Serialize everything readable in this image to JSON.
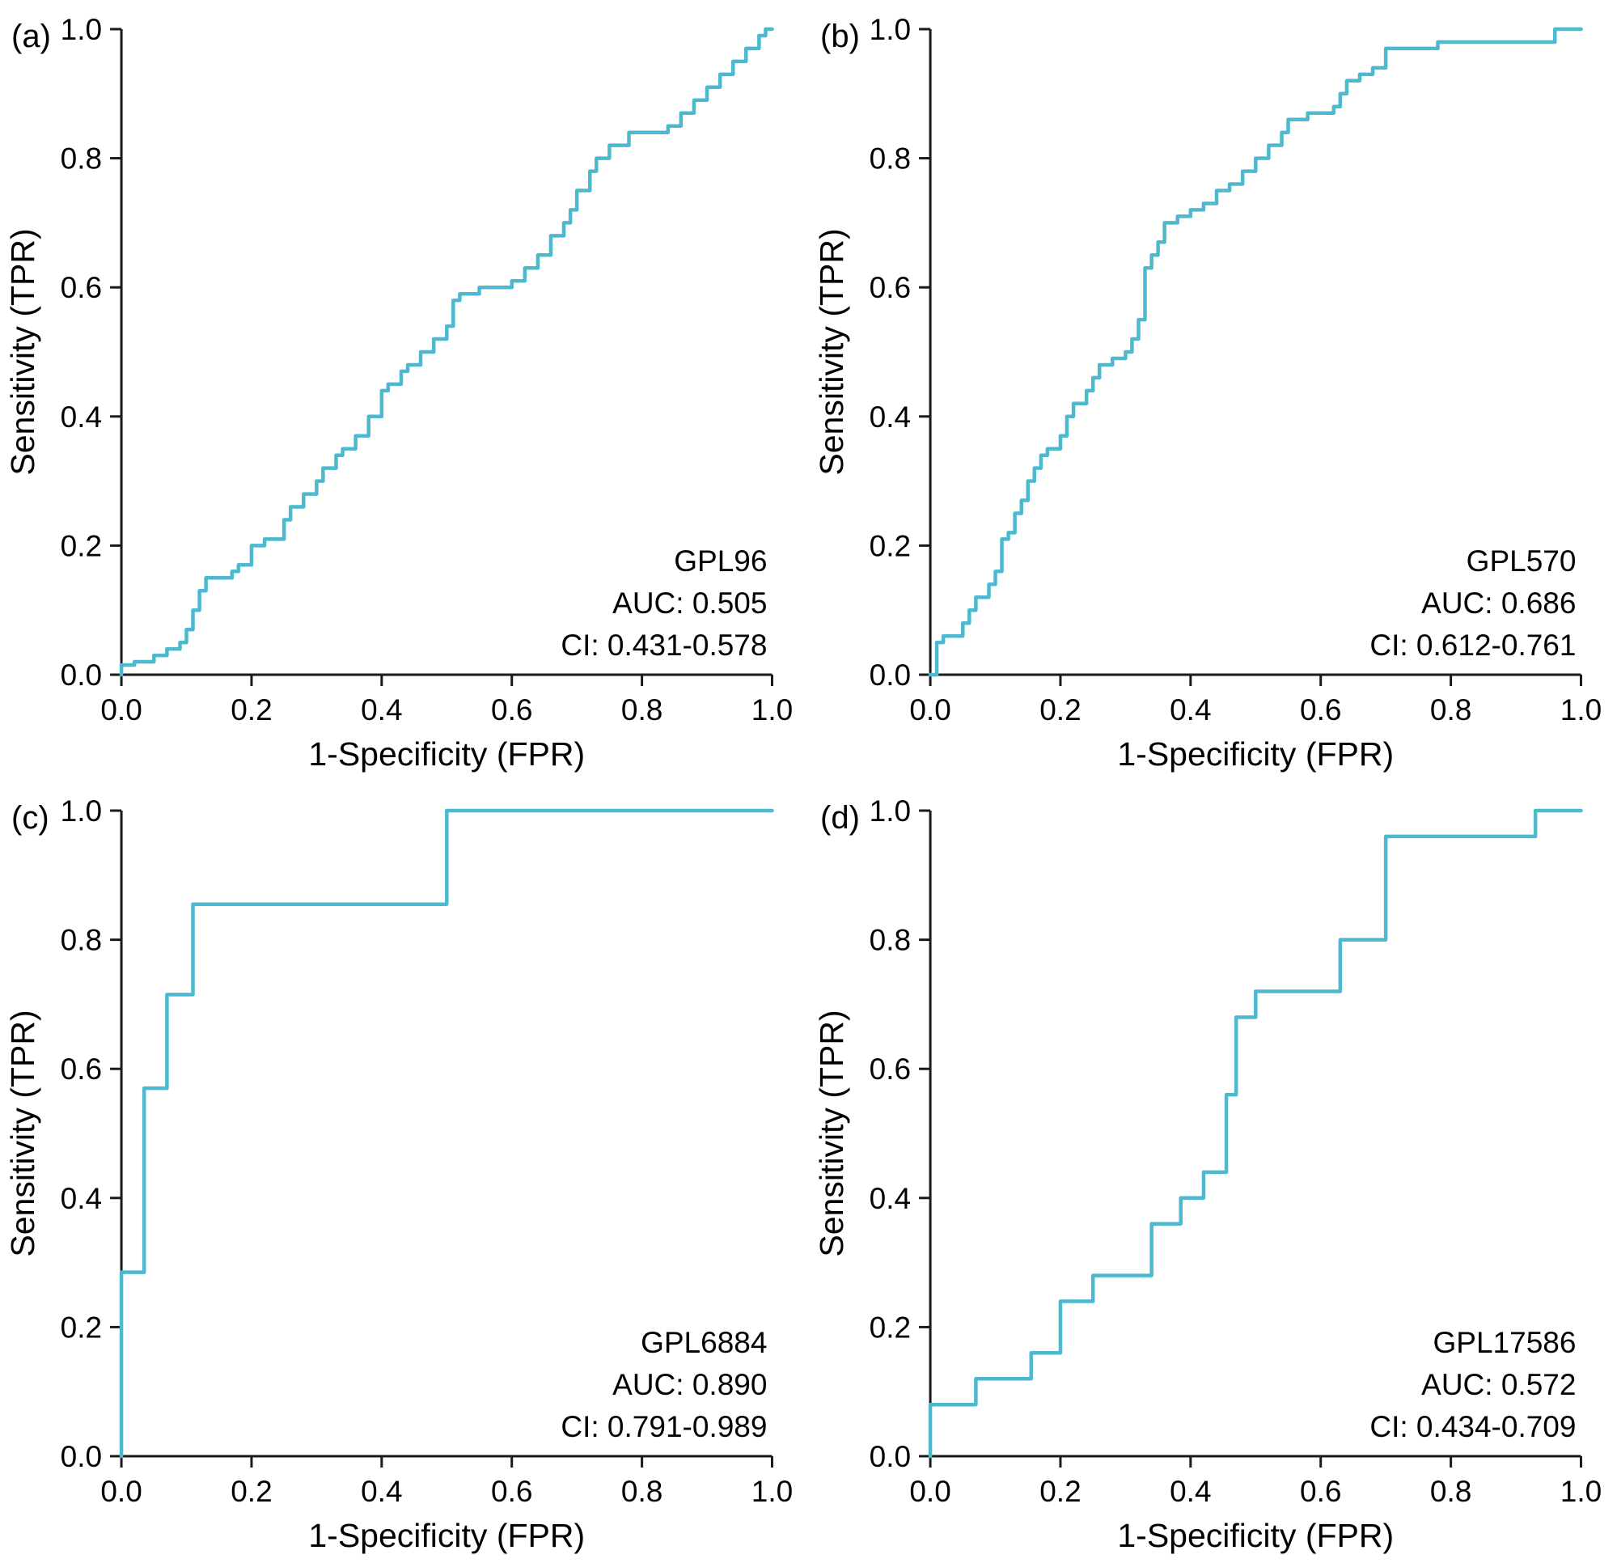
{
  "figure": {
    "curve_color": "#4cb9cf",
    "axis_color": "#1a1a1a",
    "background": "#ffffff",
    "tick_values": [
      0,
      0.2,
      0.4,
      0.6,
      0.8,
      1
    ],
    "tick_labels": [
      "0.0",
      "0.2",
      "0.4",
      "0.6",
      "0.8",
      "1.0"
    ]
  },
  "chart_data": [
    {
      "type": "line",
      "panel_label": "(a)",
      "title": "GPL96",
      "auc": 0.505,
      "ci": [
        0.431,
        0.578
      ],
      "annotation": {
        "platform": "GPL96",
        "auc": "AUC: 0.505",
        "ci": "CI: 0.431-0.578"
      },
      "xlabel": "1-Specificity (FPR)",
      "ylabel": "Sensitivity (TPR)",
      "xlim": [
        0,
        1
      ],
      "ylim": [
        0,
        1
      ],
      "points": [
        [
          0,
          0
        ],
        [
          0,
          0.015
        ],
        [
          0.02,
          0.015
        ],
        [
          0.02,
          0.02
        ],
        [
          0.05,
          0.02
        ],
        [
          0.05,
          0.03
        ],
        [
          0.07,
          0.03
        ],
        [
          0.07,
          0.04
        ],
        [
          0.09,
          0.04
        ],
        [
          0.09,
          0.05
        ],
        [
          0.1,
          0.05
        ],
        [
          0.1,
          0.07
        ],
        [
          0.11,
          0.07
        ],
        [
          0.11,
          0.1
        ],
        [
          0.12,
          0.1
        ],
        [
          0.12,
          0.13
        ],
        [
          0.13,
          0.13
        ],
        [
          0.13,
          0.15
        ],
        [
          0.17,
          0.15
        ],
        [
          0.17,
          0.16
        ],
        [
          0.18,
          0.16
        ],
        [
          0.18,
          0.17
        ],
        [
          0.2,
          0.17
        ],
        [
          0.2,
          0.2
        ],
        [
          0.22,
          0.2
        ],
        [
          0.22,
          0.21
        ],
        [
          0.25,
          0.21
        ],
        [
          0.25,
          0.24
        ],
        [
          0.26,
          0.24
        ],
        [
          0.26,
          0.26
        ],
        [
          0.28,
          0.26
        ],
        [
          0.28,
          0.28
        ],
        [
          0.3,
          0.28
        ],
        [
          0.3,
          0.3
        ],
        [
          0.31,
          0.3
        ],
        [
          0.31,
          0.32
        ],
        [
          0.33,
          0.32
        ],
        [
          0.33,
          0.34
        ],
        [
          0.34,
          0.34
        ],
        [
          0.34,
          0.35
        ],
        [
          0.36,
          0.35
        ],
        [
          0.36,
          0.37
        ],
        [
          0.38,
          0.37
        ],
        [
          0.38,
          0.4
        ],
        [
          0.4,
          0.4
        ],
        [
          0.4,
          0.44
        ],
        [
          0.41,
          0.44
        ],
        [
          0.41,
          0.45
        ],
        [
          0.43,
          0.45
        ],
        [
          0.43,
          0.47
        ],
        [
          0.44,
          0.47
        ],
        [
          0.44,
          0.48
        ],
        [
          0.46,
          0.48
        ],
        [
          0.46,
          0.5
        ],
        [
          0.48,
          0.5
        ],
        [
          0.48,
          0.52
        ],
        [
          0.5,
          0.52
        ],
        [
          0.5,
          0.54
        ],
        [
          0.51,
          0.54
        ],
        [
          0.51,
          0.58
        ],
        [
          0.52,
          0.58
        ],
        [
          0.52,
          0.59
        ],
        [
          0.55,
          0.59
        ],
        [
          0.55,
          0.6
        ],
        [
          0.6,
          0.6
        ],
        [
          0.6,
          0.61
        ],
        [
          0.62,
          0.61
        ],
        [
          0.62,
          0.63
        ],
        [
          0.64,
          0.63
        ],
        [
          0.64,
          0.65
        ],
        [
          0.66,
          0.65
        ],
        [
          0.66,
          0.68
        ],
        [
          0.68,
          0.68
        ],
        [
          0.68,
          0.7
        ],
        [
          0.69,
          0.7
        ],
        [
          0.69,
          0.72
        ],
        [
          0.7,
          0.72
        ],
        [
          0.7,
          0.75
        ],
        [
          0.72,
          0.75
        ],
        [
          0.72,
          0.78
        ],
        [
          0.73,
          0.78
        ],
        [
          0.73,
          0.8
        ],
        [
          0.75,
          0.8
        ],
        [
          0.75,
          0.82
        ],
        [
          0.78,
          0.82
        ],
        [
          0.78,
          0.84
        ],
        [
          0.84,
          0.84
        ],
        [
          0.84,
          0.85
        ],
        [
          0.86,
          0.85
        ],
        [
          0.86,
          0.87
        ],
        [
          0.88,
          0.87
        ],
        [
          0.88,
          0.89
        ],
        [
          0.9,
          0.89
        ],
        [
          0.9,
          0.91
        ],
        [
          0.92,
          0.91
        ],
        [
          0.92,
          0.93
        ],
        [
          0.94,
          0.93
        ],
        [
          0.94,
          0.95
        ],
        [
          0.96,
          0.95
        ],
        [
          0.96,
          0.97
        ],
        [
          0.98,
          0.97
        ],
        [
          0.98,
          0.99
        ],
        [
          0.99,
          0.99
        ],
        [
          0.99,
          1
        ],
        [
          1,
          1
        ]
      ]
    },
    {
      "type": "line",
      "panel_label": "(b)",
      "title": "GPL570",
      "auc": 0.686,
      "ci": [
        0.612,
        0.761
      ],
      "annotation": {
        "platform": "GPL570",
        "auc": "AUC: 0.686",
        "ci": "CI: 0.612-0.761"
      },
      "xlabel": "1-Specificity (FPR)",
      "ylabel": "Sensitivity (TPR)",
      "xlim": [
        0,
        1
      ],
      "ylim": [
        0,
        1
      ],
      "points": [
        [
          0,
          0
        ],
        [
          0.01,
          0
        ],
        [
          0.01,
          0.05
        ],
        [
          0.02,
          0.05
        ],
        [
          0.02,
          0.06
        ],
        [
          0.05,
          0.06
        ],
        [
          0.05,
          0.08
        ],
        [
          0.06,
          0.08
        ],
        [
          0.06,
          0.1
        ],
        [
          0.07,
          0.1
        ],
        [
          0.07,
          0.12
        ],
        [
          0.09,
          0.12
        ],
        [
          0.09,
          0.14
        ],
        [
          0.1,
          0.14
        ],
        [
          0.1,
          0.16
        ],
        [
          0.11,
          0.16
        ],
        [
          0.11,
          0.21
        ],
        [
          0.12,
          0.21
        ],
        [
          0.12,
          0.22
        ],
        [
          0.13,
          0.22
        ],
        [
          0.13,
          0.25
        ],
        [
          0.14,
          0.25
        ],
        [
          0.14,
          0.27
        ],
        [
          0.15,
          0.27
        ],
        [
          0.15,
          0.3
        ],
        [
          0.16,
          0.3
        ],
        [
          0.16,
          0.32
        ],
        [
          0.17,
          0.32
        ],
        [
          0.17,
          0.34
        ],
        [
          0.18,
          0.34
        ],
        [
          0.18,
          0.35
        ],
        [
          0.2,
          0.35
        ],
        [
          0.2,
          0.37
        ],
        [
          0.21,
          0.37
        ],
        [
          0.21,
          0.4
        ],
        [
          0.22,
          0.4
        ],
        [
          0.22,
          0.42
        ],
        [
          0.24,
          0.42
        ],
        [
          0.24,
          0.44
        ],
        [
          0.25,
          0.44
        ],
        [
          0.25,
          0.46
        ],
        [
          0.26,
          0.46
        ],
        [
          0.26,
          0.48
        ],
        [
          0.28,
          0.48
        ],
        [
          0.28,
          0.49
        ],
        [
          0.3,
          0.49
        ],
        [
          0.3,
          0.5
        ],
        [
          0.31,
          0.5
        ],
        [
          0.31,
          0.52
        ],
        [
          0.32,
          0.52
        ],
        [
          0.32,
          0.55
        ],
        [
          0.33,
          0.55
        ],
        [
          0.33,
          0.63
        ],
        [
          0.34,
          0.63
        ],
        [
          0.34,
          0.65
        ],
        [
          0.35,
          0.65
        ],
        [
          0.35,
          0.67
        ],
        [
          0.36,
          0.67
        ],
        [
          0.36,
          0.7
        ],
        [
          0.38,
          0.7
        ],
        [
          0.38,
          0.71
        ],
        [
          0.4,
          0.71
        ],
        [
          0.4,
          0.72
        ],
        [
          0.42,
          0.72
        ],
        [
          0.42,
          0.73
        ],
        [
          0.44,
          0.73
        ],
        [
          0.44,
          0.75
        ],
        [
          0.46,
          0.75
        ],
        [
          0.46,
          0.76
        ],
        [
          0.48,
          0.76
        ],
        [
          0.48,
          0.78
        ],
        [
          0.5,
          0.78
        ],
        [
          0.5,
          0.8
        ],
        [
          0.52,
          0.8
        ],
        [
          0.52,
          0.82
        ],
        [
          0.54,
          0.82
        ],
        [
          0.54,
          0.84
        ],
        [
          0.55,
          0.84
        ],
        [
          0.55,
          0.86
        ],
        [
          0.58,
          0.86
        ],
        [
          0.58,
          0.87
        ],
        [
          0.62,
          0.87
        ],
        [
          0.62,
          0.88
        ],
        [
          0.63,
          0.88
        ],
        [
          0.63,
          0.9
        ],
        [
          0.64,
          0.9
        ],
        [
          0.64,
          0.92
        ],
        [
          0.66,
          0.92
        ],
        [
          0.66,
          0.93
        ],
        [
          0.68,
          0.93
        ],
        [
          0.68,
          0.94
        ],
        [
          0.7,
          0.94
        ],
        [
          0.7,
          0.97
        ],
        [
          0.78,
          0.97
        ],
        [
          0.78,
          0.98
        ],
        [
          0.96,
          0.98
        ],
        [
          0.96,
          1
        ],
        [
          1,
          1
        ]
      ]
    },
    {
      "type": "line",
      "panel_label": "(c)",
      "title": "GPL6884",
      "auc": 0.89,
      "ci": [
        0.791,
        0.989
      ],
      "annotation": {
        "platform": "GPL6884",
        "auc": "AUC: 0.890",
        "ci": "CI: 0.791-0.989"
      },
      "xlabel": "1-Specificity (FPR)",
      "ylabel": "Sensitivity (TPR)",
      "xlim": [
        0,
        1
      ],
      "ylim": [
        0,
        1
      ],
      "points": [
        [
          0,
          0
        ],
        [
          0,
          0.285
        ],
        [
          0.035,
          0.285
        ],
        [
          0.035,
          0.57
        ],
        [
          0.07,
          0.57
        ],
        [
          0.07,
          0.715
        ],
        [
          0.11,
          0.715
        ],
        [
          0.11,
          0.855
        ],
        [
          0.5,
          0.855
        ],
        [
          0.5,
          1
        ],
        [
          1,
          1
        ]
      ]
    },
    {
      "type": "line",
      "panel_label": "(d)",
      "title": "GPL17586",
      "auc": 0.572,
      "ci": [
        0.434,
        0.709
      ],
      "annotation": {
        "platform": "GPL17586",
        "auc": "AUC: 0.572",
        "ci": "CI: 0.434-0.709"
      },
      "xlabel": "1-Specificity (FPR)",
      "ylabel": "Sensitivity (TPR)",
      "xlim": [
        0,
        1
      ],
      "ylim": [
        0,
        1
      ],
      "points": [
        [
          0,
          0
        ],
        [
          0,
          0.08
        ],
        [
          0.07,
          0.08
        ],
        [
          0.07,
          0.12
        ],
        [
          0.155,
          0.12
        ],
        [
          0.155,
          0.16
        ],
        [
          0.2,
          0.16
        ],
        [
          0.2,
          0.24
        ],
        [
          0.25,
          0.24
        ],
        [
          0.25,
          0.28
        ],
        [
          0.34,
          0.28
        ],
        [
          0.34,
          0.36
        ],
        [
          0.385,
          0.36
        ],
        [
          0.385,
          0.4
        ],
        [
          0.42,
          0.4
        ],
        [
          0.42,
          0.44
        ],
        [
          0.455,
          0.44
        ],
        [
          0.455,
          0.56
        ],
        [
          0.47,
          0.56
        ],
        [
          0.47,
          0.68
        ],
        [
          0.5,
          0.68
        ],
        [
          0.5,
          0.72
        ],
        [
          0.63,
          0.72
        ],
        [
          0.63,
          0.8
        ],
        [
          0.7,
          0.8
        ],
        [
          0.7,
          0.96
        ],
        [
          0.93,
          0.96
        ],
        [
          0.93,
          1
        ],
        [
          1,
          1
        ]
      ]
    }
  ]
}
